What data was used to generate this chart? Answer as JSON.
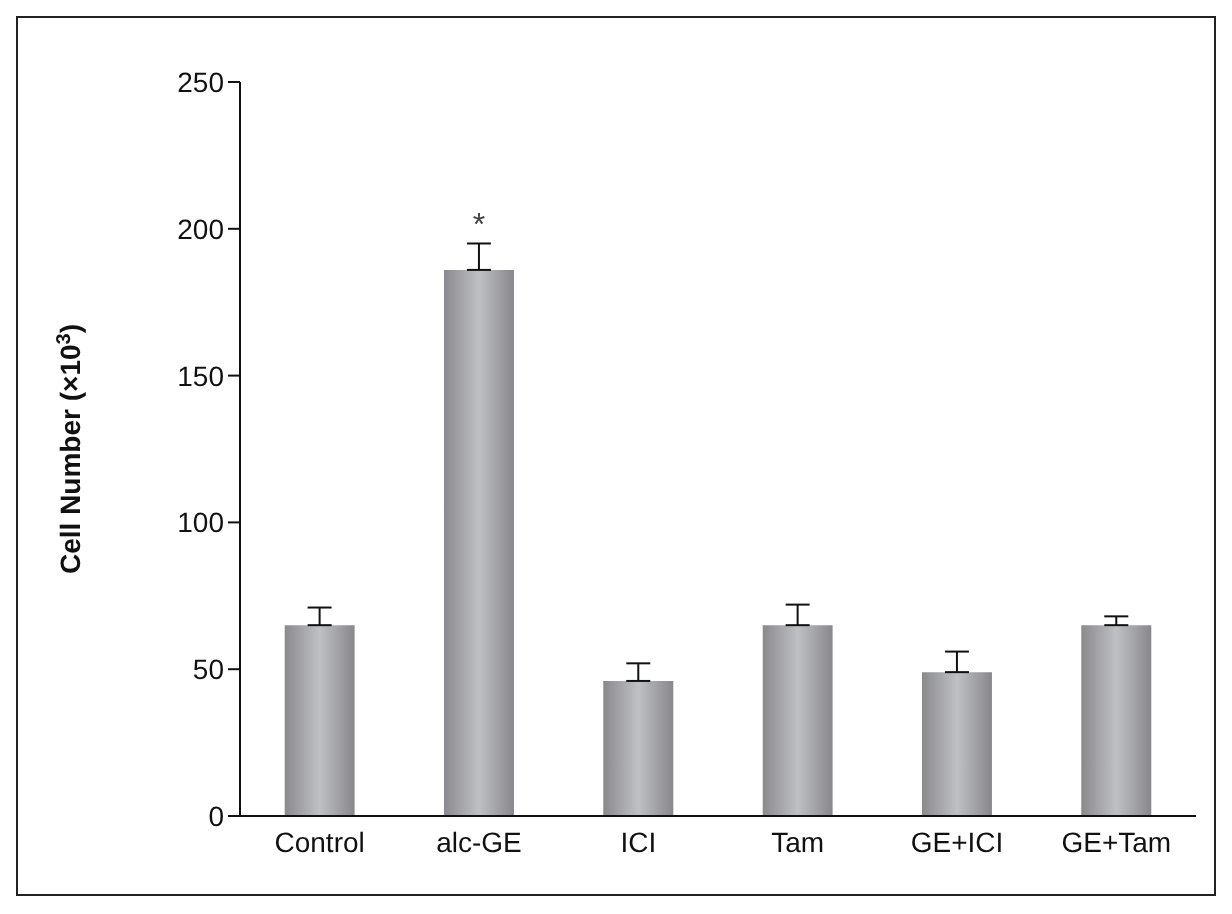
{
  "chart_data": {
    "type": "bar",
    "ylabel": "Cell Number (×10$^{3}$)",
    "categories": [
      "Control",
      "alc-GE",
      "ICI",
      "Tam",
      "GE+ICI",
      "GE+Tam"
    ],
    "values": [
      65,
      186,
      46,
      65,
      49,
      65
    ],
    "errors": [
      [
        65,
        71
      ],
      [
        186,
        195
      ],
      [
        46,
        52
      ],
      [
        65,
        72
      ],
      [
        49,
        56
      ],
      [
        65,
        68
      ]
    ],
    "color": "#a9a9ad",
    "ylim": [
      0,
      250
    ],
    "yticks": [
      0,
      50,
      100,
      150,
      200,
      250
    ],
    "grid": false,
    "annotations": [
      {
        "text": "*",
        "x": "alc-GE",
        "y": 195
      }
    ]
  }
}
